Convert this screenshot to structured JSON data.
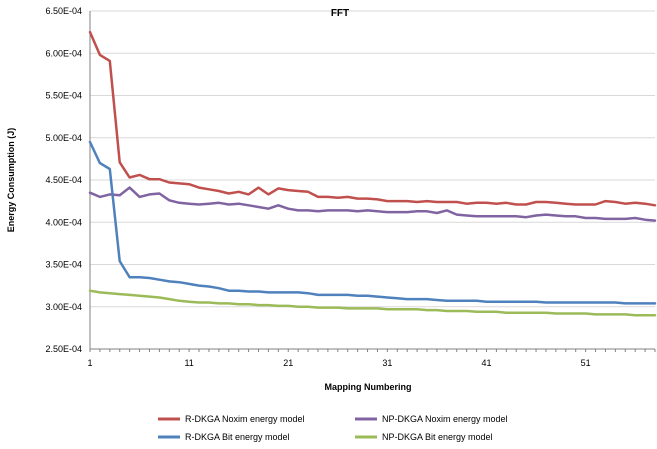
{
  "chart_data": {
    "type": "line",
    "title": "FFT",
    "xlabel": "Mapping Numbering",
    "ylabel": "Energy Consumption (J)",
    "xlim": [
      1,
      58
    ],
    "ylim": [
      0.00025,
      0.00065
    ],
    "x_ticks": [
      1,
      11,
      21,
      31,
      41,
      51
    ],
    "x_tick_labels": [
      "1",
      "11",
      "21",
      "31",
      "41",
      "51"
    ],
    "y_ticks": [
      0.00025,
      0.0003,
      0.00035,
      0.0004,
      0.00045,
      0.0005,
      0.00055,
      0.0006,
      0.00065
    ],
    "y_tick_labels": [
      "2.50E-04",
      "3.00E-04",
      "3.50E-04",
      "4.00E-04",
      "4.50E-04",
      "5.00E-04",
      "5.50E-04",
      "6.00E-04",
      "6.50E-04"
    ],
    "grid": "horizontal major",
    "legend_position": "bottom",
    "x": [
      1,
      2,
      3,
      4,
      5,
      6,
      7,
      8,
      9,
      10,
      11,
      12,
      13,
      14,
      15,
      16,
      17,
      18,
      19,
      20,
      21,
      22,
      23,
      24,
      25,
      26,
      27,
      28,
      29,
      30,
      31,
      32,
      33,
      34,
      35,
      36,
      37,
      38,
      39,
      40,
      41,
      42,
      43,
      44,
      45,
      46,
      47,
      48,
      49,
      50,
      51,
      52,
      53,
      54,
      55,
      56,
      57,
      58
    ],
    "series": [
      {
        "name": "R-DKGA Noxim energy model",
        "color": "#c0504d",
        "values": [
          0.000625,
          0.000598,
          0.000591,
          0.000471,
          0.000453,
          0.000456,
          0.000451,
          0.000451,
          0.000447,
          0.000446,
          0.000445,
          0.000441,
          0.000439,
          0.000437,
          0.000434,
          0.000436,
          0.000433,
          0.000441,
          0.000433,
          0.00044,
          0.000438,
          0.000437,
          0.000436,
          0.00043,
          0.00043,
          0.000429,
          0.00043,
          0.000428,
          0.000428,
          0.000427,
          0.000425,
          0.000425,
          0.000425,
          0.000424,
          0.000425,
          0.000424,
          0.000424,
          0.000424,
          0.000422,
          0.000423,
          0.000423,
          0.000422,
          0.000423,
          0.000421,
          0.000421,
          0.000424,
          0.000424,
          0.000423,
          0.000422,
          0.000421,
          0.000421,
          0.000421,
          0.000425,
          0.000424,
          0.000422,
          0.000423,
          0.000422,
          0.00042
        ]
      },
      {
        "name": "NP-DKGA Noxim energy model",
        "color": "#8064a2",
        "values": [
          0.000435,
          0.00043,
          0.000433,
          0.000432,
          0.000441,
          0.00043,
          0.000433,
          0.000434,
          0.000426,
          0.000423,
          0.000422,
          0.000421,
          0.000422,
          0.000423,
          0.000421,
          0.000422,
          0.00042,
          0.000418,
          0.000416,
          0.00042,
          0.000416,
          0.000414,
          0.000414,
          0.000413,
          0.000414,
          0.000414,
          0.000414,
          0.000413,
          0.000414,
          0.000413,
          0.000412,
          0.000412,
          0.000412,
          0.000413,
          0.000413,
          0.000411,
          0.000414,
          0.000409,
          0.000408,
          0.000407,
          0.000407,
          0.000407,
          0.000407,
          0.000407,
          0.000406,
          0.000408,
          0.000409,
          0.000408,
          0.000407,
          0.000407,
          0.000405,
          0.000405,
          0.000404,
          0.000404,
          0.000404,
          0.000405,
          0.000403,
          0.000402
        ]
      },
      {
        "name": "R-DKGA Bit energy model",
        "color": "#4f81bd",
        "values": [
          0.000495,
          0.00047,
          0.000463,
          0.000354,
          0.000335,
          0.000335,
          0.000334,
          0.000332,
          0.00033,
          0.000329,
          0.000327,
          0.000325,
          0.000324,
          0.000322,
          0.000319,
          0.000319,
          0.000318,
          0.000318,
          0.000317,
          0.000317,
          0.000317,
          0.000317,
          0.000316,
          0.000314,
          0.000314,
          0.000314,
          0.000314,
          0.000313,
          0.000313,
          0.000312,
          0.000311,
          0.00031,
          0.000309,
          0.000309,
          0.000309,
          0.000308,
          0.000307,
          0.000307,
          0.000307,
          0.000307,
          0.000306,
          0.000306,
          0.000306,
          0.000306,
          0.000306,
          0.000306,
          0.000305,
          0.000305,
          0.000305,
          0.000305,
          0.000305,
          0.000305,
          0.000305,
          0.000305,
          0.000304,
          0.000304,
          0.000304,
          0.000304
        ]
      },
      {
        "name": "NP-DKGA Bit energy model",
        "color": "#9bbb59",
        "values": [
          0.000319,
          0.000317,
          0.000316,
          0.000315,
          0.000314,
          0.000313,
          0.000312,
          0.000311,
          0.000309,
          0.000307,
          0.000306,
          0.000305,
          0.000305,
          0.000304,
          0.000304,
          0.000303,
          0.000303,
          0.000302,
          0.000302,
          0.000301,
          0.000301,
          0.0003,
          0.0003,
          0.000299,
          0.000299,
          0.000299,
          0.000298,
          0.000298,
          0.000298,
          0.000298,
          0.000297,
          0.000297,
          0.000297,
          0.000297,
          0.000296,
          0.000296,
          0.000295,
          0.000295,
          0.000295,
          0.000294,
          0.000294,
          0.000294,
          0.000293,
          0.000293,
          0.000293,
          0.000293,
          0.000293,
          0.000292,
          0.000292,
          0.000292,
          0.000292,
          0.000291,
          0.000291,
          0.000291,
          0.000291,
          0.00029,
          0.00029,
          0.00029
        ]
      }
    ]
  }
}
